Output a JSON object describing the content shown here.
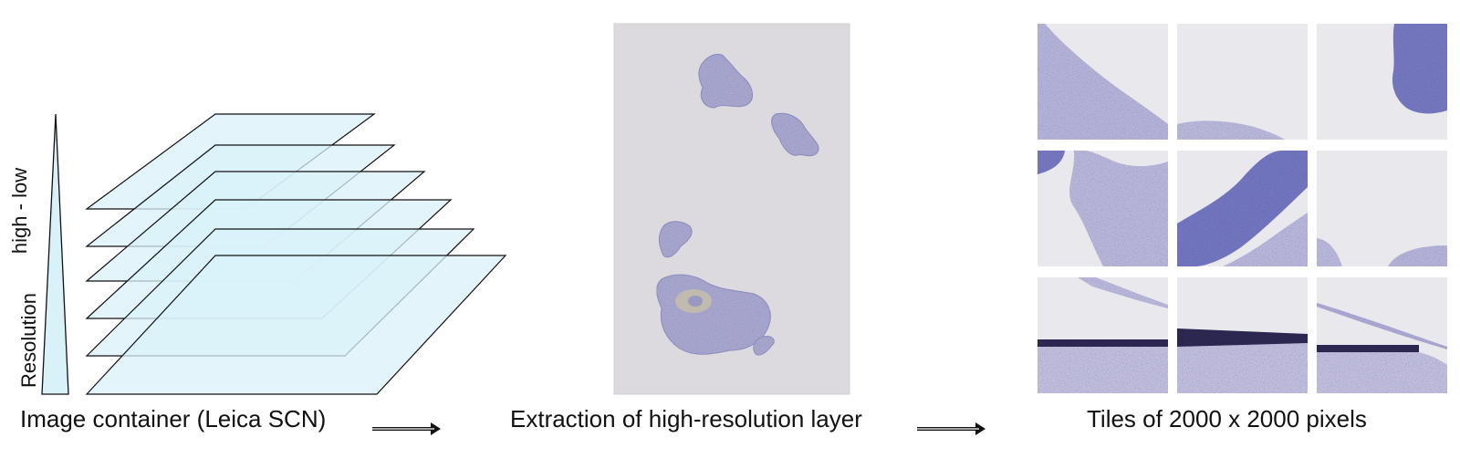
{
  "resolution_axis": {
    "word": "Resolution",
    "range": "high - low"
  },
  "captions": {
    "container": "Image container (Leica SCN)",
    "extraction": "Extraction of high-resolution layer",
    "tiles": "Tiles of 2000 x 2000 pixels"
  },
  "pyramid": {
    "layer_count": 6
  },
  "tiles": {
    "rows": 3,
    "cols": 3
  },
  "colors": {
    "layer_fill": "#d9f2fa",
    "stain_purple": "#5b5fa8",
    "slide_background": "#dcdadf",
    "tile_background": "#e9e8ec",
    "outline": "#111111"
  }
}
